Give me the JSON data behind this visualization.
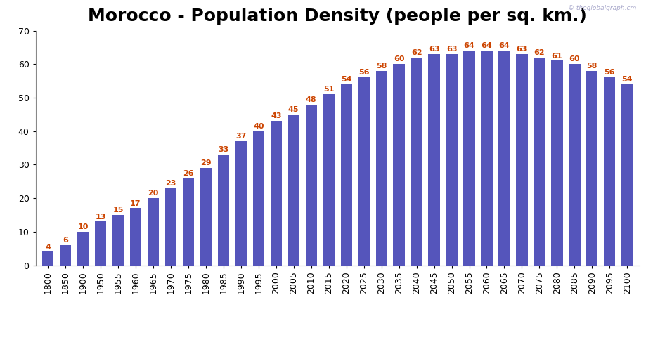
{
  "title": "Morocco - Population Density (people per sq. km.)",
  "categories": [
    "1800",
    "1850",
    "1900",
    "1950",
    "1955",
    "1960",
    "1965",
    "1970",
    "1975",
    "1980",
    "1985",
    "1990",
    "1995",
    "2000",
    "2005",
    "2010",
    "2015",
    "2020",
    "2025",
    "2030",
    "2035",
    "2040",
    "2045",
    "2050",
    "2055",
    "2060",
    "2065",
    "2070",
    "2075",
    "2080",
    "2085",
    "2090",
    "2095",
    "2100"
  ],
  "values": [
    4,
    6,
    10,
    13,
    15,
    17,
    20,
    23,
    26,
    29,
    33,
    37,
    40,
    43,
    45,
    48,
    51,
    54,
    56,
    58,
    60,
    62,
    63,
    63,
    64,
    64,
    64,
    63,
    62,
    61,
    60,
    58,
    56,
    54
  ],
  "bar_color": "#5555bb",
  "label_color": "#cc4400",
  "ylim": [
    0,
    70
  ],
  "yticks": [
    0,
    10,
    20,
    30,
    40,
    50,
    60,
    70
  ],
  "background_color": "#ffffff",
  "title_fontsize": 18,
  "tick_fontsize": 9,
  "label_fontsize": 8,
  "watermark": "© theglobalgraph.cm"
}
